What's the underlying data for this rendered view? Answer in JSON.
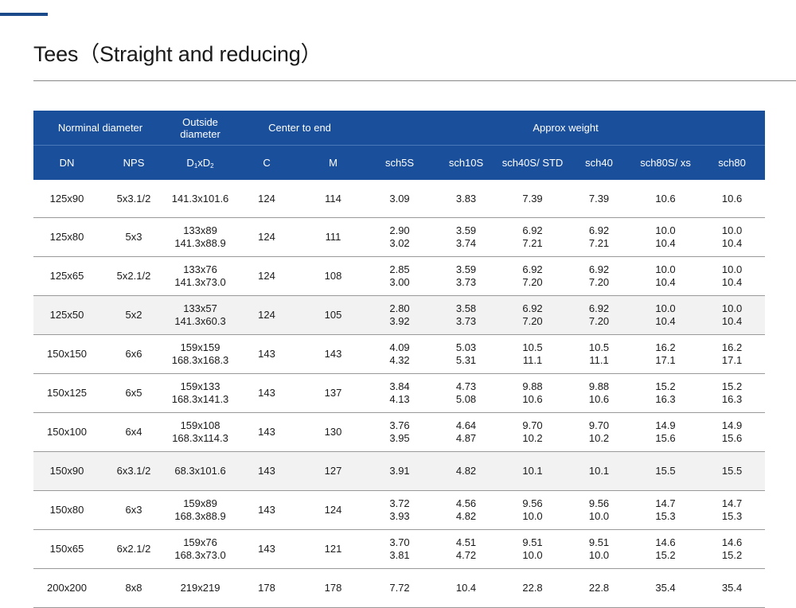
{
  "page": {
    "title": "Tees（Straight and reducing）"
  },
  "table": {
    "group_headers": {
      "nominal_diameter": "Norminal diameter",
      "outside_diameter_line1": "Outside",
      "outside_diameter_line2": "diameter",
      "center_to_end": "Center to end",
      "approx_weight": "Approx weight"
    },
    "sub_headers": {
      "dn": "DN",
      "nps": "NPS",
      "od_d": "D",
      "od_1": "1",
      "od_x": "xD",
      "od_2": "2",
      "c": "C",
      "m": "M",
      "sch5s": "sch5S",
      "sch10s": "sch10S",
      "sch40s_line1": "sch40S/",
      "sch40s_line2": "STD",
      "sch40": "sch40",
      "sch80s_line1": "sch80S/",
      "sch80s_line2": "xs",
      "sch80": "sch80"
    },
    "rows": [
      {
        "dn": "125x90",
        "nps": "5x3.1/2",
        "od": [
          "141.3x101.6"
        ],
        "c": "124",
        "m": "114",
        "sch5s": [
          "3.09"
        ],
        "sch10s": [
          "3.83"
        ],
        "sch40s": [
          "7.39"
        ],
        "sch40": [
          "7.39"
        ],
        "sch80s": [
          "10.6"
        ],
        "sch80": [
          "10.6"
        ]
      },
      {
        "dn": "125x80",
        "nps": "5x3",
        "od": [
          "133x89",
          "141.3x88.9"
        ],
        "c": "124",
        "m": "111",
        "sch5s": [
          "2.90",
          "3.02"
        ],
        "sch10s": [
          "3.59",
          "3.74"
        ],
        "sch40s": [
          "6.92",
          "7.21"
        ],
        "sch40": [
          "6.92",
          "7.21"
        ],
        "sch80s": [
          "10.0",
          "10.4"
        ],
        "sch80": [
          "10.0",
          "10.4"
        ]
      },
      {
        "dn": "125x65",
        "nps": "5x2.1/2",
        "od": [
          "133x76",
          "141.3x73.0"
        ],
        "c": "124",
        "m": "108",
        "sch5s": [
          "2.85",
          "3.00"
        ],
        "sch10s": [
          "3.59",
          "3.73"
        ],
        "sch40s": [
          "6.92",
          "7.20"
        ],
        "sch40": [
          "6.92",
          "7.20"
        ],
        "sch80s": [
          "10.0",
          "10.4"
        ],
        "sch80": [
          "10.0",
          "10.4"
        ]
      },
      {
        "dn": "125x50",
        "nps": "5x2",
        "od": [
          "133x57",
          "141.3x60.3"
        ],
        "c": "124",
        "m": "105",
        "sch5s": [
          "2.80",
          "3.92"
        ],
        "sch10s": [
          "3.58",
          "3.73"
        ],
        "sch40s": [
          "6.92",
          "7.20"
        ],
        "sch40": [
          "6.92",
          "7.20"
        ],
        "sch80s": [
          "10.0",
          "10.4"
        ],
        "sch80": [
          "10.0",
          "10.4"
        ]
      },
      {
        "dn": "150x150",
        "nps": "6x6",
        "od": [
          "159x159",
          "168.3x168.3"
        ],
        "c": "143",
        "m": "143",
        "sch5s": [
          "4.09",
          "4.32"
        ],
        "sch10s": [
          "5.03",
          "5.31"
        ],
        "sch40s": [
          "10.5",
          "11.1"
        ],
        "sch40": [
          "10.5",
          "11.1"
        ],
        "sch80s": [
          "16.2",
          "17.1"
        ],
        "sch80": [
          "16.2",
          "17.1"
        ]
      },
      {
        "dn": "150x125",
        "nps": "6x5",
        "od": [
          "159x133",
          "168.3x141.3"
        ],
        "c": "143",
        "m": "137",
        "sch5s": [
          "3.84",
          "4.13"
        ],
        "sch10s": [
          "4.73",
          "5.08"
        ],
        "sch40s": [
          "9.88",
          "10.6"
        ],
        "sch40": [
          "9.88",
          "10.6"
        ],
        "sch80s": [
          "15.2",
          "16.3"
        ],
        "sch80": [
          "15.2",
          "16.3"
        ]
      },
      {
        "dn": "150x100",
        "nps": "6x4",
        "od": [
          "159x108",
          "168.3x114.3"
        ],
        "c": "143",
        "m": "130",
        "sch5s": [
          "3.76",
          "3.95"
        ],
        "sch10s": [
          "4.64",
          "4.87"
        ],
        "sch40s": [
          "9.70",
          "10.2"
        ],
        "sch40": [
          "9.70",
          "10.2"
        ],
        "sch80s": [
          "14.9",
          "15.6"
        ],
        "sch80": [
          "14.9",
          "15.6"
        ]
      },
      {
        "dn": "150x90",
        "nps": "6x3.1/2",
        "od": [
          "68.3x101.6"
        ],
        "c": "143",
        "m": "127",
        "sch5s": [
          "3.91"
        ],
        "sch10s": [
          "4.82"
        ],
        "sch40s": [
          "10.1"
        ],
        "sch40": [
          "10.1"
        ],
        "sch80s": [
          "15.5"
        ],
        "sch80": [
          "15.5"
        ]
      },
      {
        "dn": "150x80",
        "nps": "6x3",
        "od": [
          "159x89",
          "168.3x88.9"
        ],
        "c": "143",
        "m": "124",
        "sch5s": [
          "3.72",
          "3.93"
        ],
        "sch10s": [
          "4.56",
          "4.82"
        ],
        "sch40s": [
          "9.56",
          "10.0"
        ],
        "sch40": [
          "9.56",
          "10.0"
        ],
        "sch80s": [
          "14.7",
          "15.3"
        ],
        "sch80": [
          "14.7",
          "15.3"
        ]
      },
      {
        "dn": "150x65",
        "nps": "6x2.1/2",
        "od": [
          "159x76",
          "168.3x73.0"
        ],
        "c": "143",
        "m": "121",
        "sch5s": [
          "3.70",
          "3.81"
        ],
        "sch10s": [
          "4.51",
          "4.72"
        ],
        "sch40s": [
          "9.51",
          "10.0"
        ],
        "sch40": [
          "9.51",
          "10.0"
        ],
        "sch80s": [
          "14.6",
          "15.2"
        ],
        "sch80": [
          "14.6",
          "15.2"
        ]
      },
      {
        "dn": "200x200",
        "nps": "8x8",
        "od": [
          "219x219"
        ],
        "c": "178",
        "m": "178",
        "sch5s": [
          "7.72"
        ],
        "sch10s": [
          "10.4"
        ],
        "sch40s": [
          "22.8"
        ],
        "sch40": [
          "22.8"
        ],
        "sch80s": [
          "35.4"
        ],
        "sch80": [
          "35.4"
        ]
      }
    ]
  }
}
